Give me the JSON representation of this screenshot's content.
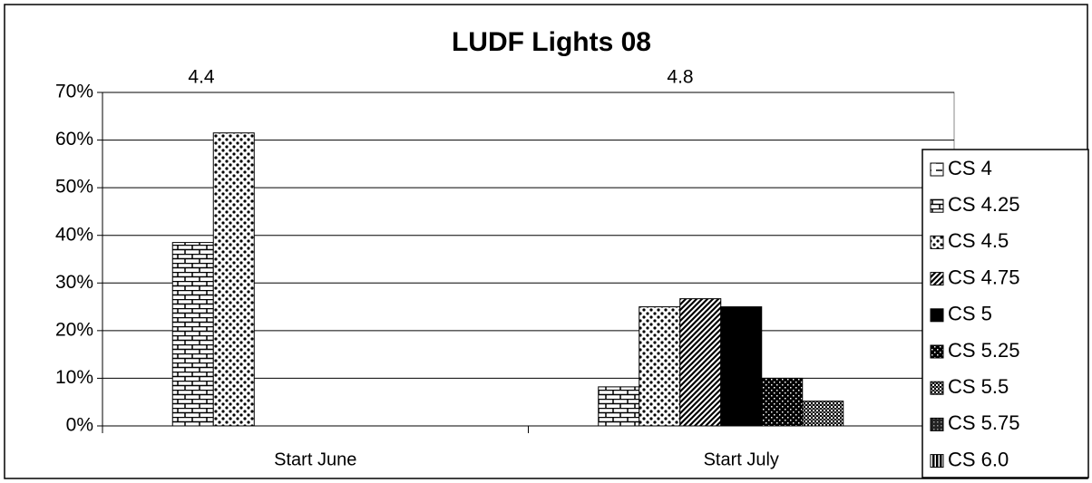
{
  "chart_data": {
    "type": "bar",
    "title": "LUDF Lights 08",
    "annotations": [
      "4.4",
      "4.8"
    ],
    "categories": [
      "Start June",
      "Start July"
    ],
    "series": [
      {
        "name": "CS 4",
        "color": "#000000",
        "pattern": "dash",
        "values": [
          0,
          0
        ]
      },
      {
        "name": "CS 4.25",
        "color": "#000000",
        "pattern": "brick",
        "values": [
          38.5,
          8.2
        ]
      },
      {
        "name": "CS 4.5",
        "color": "#000000",
        "pattern": "dots",
        "values": [
          61.5,
          25
        ]
      },
      {
        "name": "CS 4.75",
        "color": "#000000",
        "pattern": "diagonal",
        "values": [
          0,
          26.7
        ]
      },
      {
        "name": "CS 5",
        "color": "#000000",
        "pattern": "solid",
        "values": [
          0,
          25
        ]
      },
      {
        "name": "CS 5.25",
        "color": "#000000",
        "pattern": "sparse",
        "values": [
          0,
          10
        ]
      },
      {
        "name": "CS 5.5",
        "color": "#000000",
        "pattern": "checker",
        "values": [
          0,
          5.2
        ]
      },
      {
        "name": "CS 5.75",
        "color": "#000000",
        "pattern": "grid",
        "values": [
          0,
          0
        ]
      },
      {
        "name": "CS 6.0",
        "color": "#000000",
        "pattern": "vertical",
        "values": [
          0,
          0
        ]
      }
    ],
    "ylim": [
      0,
      70
    ],
    "yticks": [
      {
        "value": 0,
        "label": "0%"
      },
      {
        "value": 10,
        "label": "10%"
      },
      {
        "value": 20,
        "label": "20%"
      },
      {
        "value": 30,
        "label": "30%"
      },
      {
        "value": 40,
        "label": "40%"
      },
      {
        "value": 50,
        "label": "50%"
      },
      {
        "value": 60,
        "label": "60%"
      },
      {
        "value": 70,
        "label": "70%"
      }
    ],
    "grid": true,
    "legend": "right"
  }
}
